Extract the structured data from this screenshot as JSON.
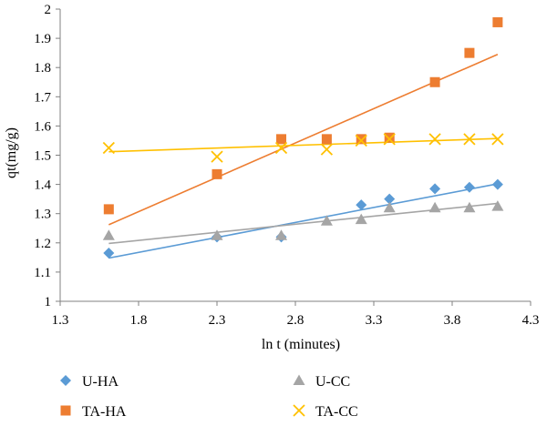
{
  "chart_data": {
    "type": "scatter",
    "title": "",
    "xlabel": "ln t (minutes)",
    "ylabel": "qt(mg/g)",
    "xlim": [
      1.3,
      4.3
    ],
    "ylim": [
      1,
      2
    ],
    "xticks": [
      "1.3",
      "1.8",
      "2.3",
      "2.8",
      "3.3",
      "3.8",
      "4.3"
    ],
    "yticks": [
      "1",
      "1.1",
      "1.2",
      "1.3",
      "1.4",
      "1.5",
      "1.6",
      "1.7",
      "1.8",
      "1.9",
      "2"
    ],
    "grid": false,
    "legend_position": "bottom",
    "series": [
      {
        "name": "U-HA",
        "marker": "diamond",
        "color": "#5B9BD5",
        "x": [
          1.61,
          2.3,
          2.71,
          3.22,
          3.4,
          3.69,
          3.91,
          4.09
        ],
        "y": [
          1.165,
          1.22,
          1.22,
          1.33,
          1.35,
          1.385,
          1.39,
          1.4
        ],
        "trendline": [
          [
            1.61,
            1.148
          ],
          [
            4.09,
            1.402
          ]
        ]
      },
      {
        "name": "U-CC",
        "marker": "triangle",
        "color": "#A5A5A5",
        "x": [
          1.61,
          2.3,
          2.71,
          3.0,
          3.22,
          3.4,
          3.69,
          3.91,
          4.09
        ],
        "y": [
          1.225,
          1.225,
          1.225,
          1.275,
          1.28,
          1.32,
          1.32,
          1.32,
          1.325
        ],
        "trendline": [
          [
            1.61,
            1.198
          ],
          [
            4.09,
            1.335
          ]
        ]
      },
      {
        "name": "TA-HA",
        "marker": "square",
        "color": "#ED7D31",
        "x": [
          1.61,
          2.3,
          2.71,
          3.0,
          3.22,
          3.4,
          3.69,
          3.91,
          4.09
        ],
        "y": [
          1.315,
          1.435,
          1.555,
          1.555,
          1.555,
          1.56,
          1.75,
          1.85,
          1.955
        ],
        "trendline": [
          [
            1.61,
            1.262
          ],
          [
            4.09,
            1.845
          ]
        ]
      },
      {
        "name": "TA-CC",
        "marker": "x",
        "color": "#FFC000",
        "x": [
          1.61,
          2.3,
          2.71,
          3.0,
          3.22,
          3.4,
          3.69,
          3.91,
          4.09
        ],
        "y": [
          1.525,
          1.495,
          1.525,
          1.52,
          1.55,
          1.555,
          1.555,
          1.555,
          1.555
        ],
        "trendline": [
          [
            1.61,
            1.512
          ],
          [
            4.09,
            1.557
          ]
        ]
      }
    ]
  }
}
